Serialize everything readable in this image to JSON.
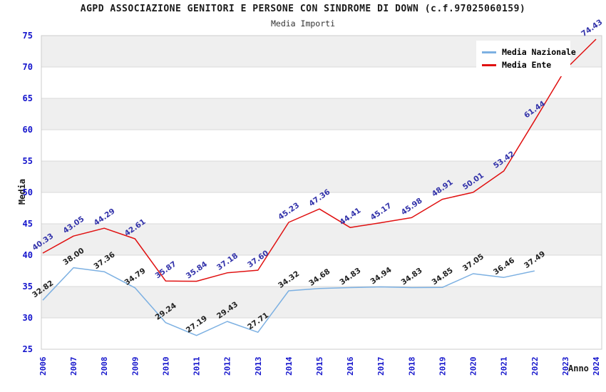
{
  "header": {
    "title": "AGPD ASSOCIAZIONE GENITORI E PERSONE CON SINDROME DI DOWN (c.f.97025060159)",
    "subtitle": "Media Importi"
  },
  "axes": {
    "y_title": "Media",
    "x_title": "Anno",
    "y_ticks": [
      25,
      30,
      35,
      40,
      45,
      50,
      55,
      60,
      65,
      70,
      75
    ],
    "x_ticks": [
      "2006",
      "2007",
      "2008",
      "2009",
      "2010",
      "2011",
      "2012",
      "2013",
      "2014",
      "2015",
      "2016",
      "2017",
      "2018",
      "2019",
      "2020",
      "2021",
      "2022",
      "2023",
      "2024"
    ]
  },
  "legend": {
    "items": [
      {
        "label": "Media Nazionale",
        "color": "#7cb0e2"
      },
      {
        "label": "Media Ente",
        "color": "#e01010"
      }
    ]
  },
  "chart_data": {
    "type": "line",
    "title": "Media Importi",
    "xlabel": "Anno",
    "ylabel": "Media",
    "ylim": [
      25,
      75
    ],
    "x": [
      2006,
      2007,
      2008,
      2009,
      2010,
      2011,
      2012,
      2013,
      2014,
      2015,
      2016,
      2017,
      2018,
      2019,
      2020,
      2021,
      2022,
      2023,
      2024
    ],
    "series": [
      {
        "name": "Media Nazionale",
        "color": "#7cb0e2",
        "label_color": "#222222",
        "values": [
          32.82,
          38.0,
          37.36,
          34.79,
          29.24,
          27.19,
          29.43,
          27.71,
          34.32,
          34.68,
          34.83,
          34.94,
          34.83,
          34.85,
          37.05,
          36.46,
          37.49,
          null,
          null
        ]
      },
      {
        "name": "Media Ente",
        "color": "#e01010",
        "label_color": "#3333aa",
        "values": [
          40.33,
          43.05,
          44.29,
          42.61,
          35.87,
          35.84,
          37.18,
          37.6,
          45.23,
          47.36,
          44.41,
          45.17,
          45.98,
          48.91,
          50.01,
          53.42,
          61.44,
          69.6,
          74.43
        ],
        "unlabeled_x": [
          2023
        ]
      }
    ],
    "gray_bands": [
      [
        30,
        35
      ],
      [
        40,
        45
      ],
      [
        50,
        55
      ],
      [
        60,
        65
      ],
      [
        70,
        75
      ]
    ],
    "grid": "horizontal",
    "legend_position": "top-right"
  },
  "colors": {
    "tick_blue": "#1414cc",
    "value_label_blue": "#3333aa",
    "value_label_black": "#222222",
    "grid_line": "#d9d9d9",
    "band_fill": "#efefef",
    "plot_border": "#cccccc",
    "nazionale_line": "#7cb0e2",
    "ente_line": "#e01010"
  }
}
